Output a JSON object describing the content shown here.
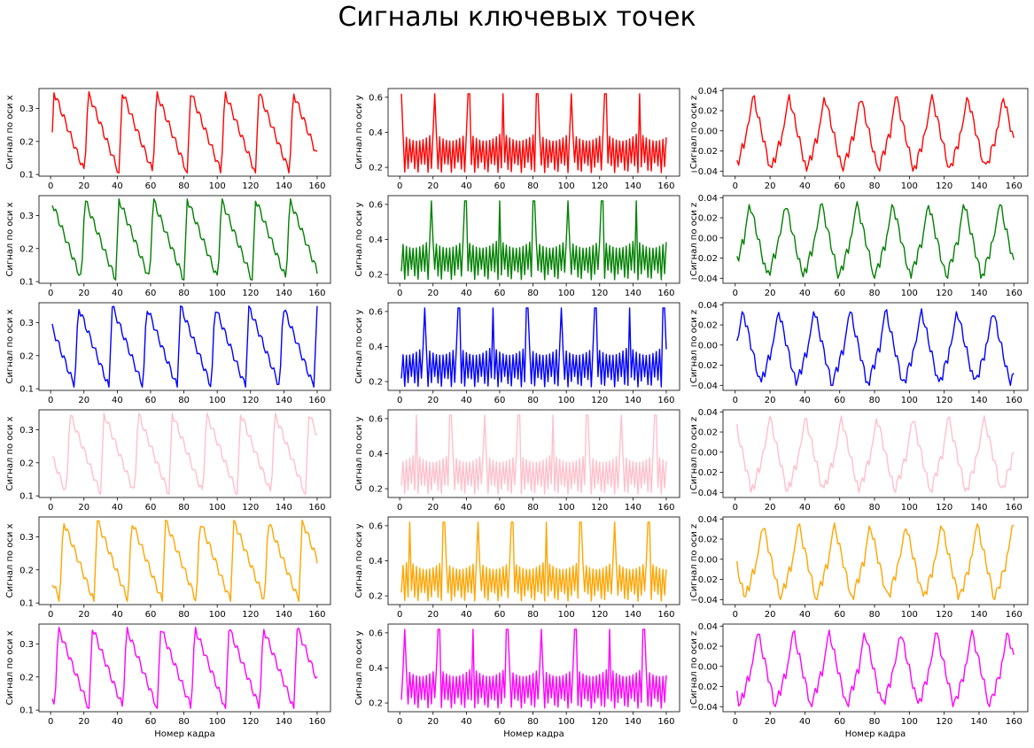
{
  "figure": {
    "title": "Сигналы ключевых точек",
    "xlabel": "Номер кадра",
    "ylabels": [
      "Сигнал по оси x",
      "Сигнал по оси y",
      "Сигнал по оси z"
    ],
    "row_colors": [
      "#ff0000",
      "#008000",
      "#0000ff",
      "#ffc0cb",
      "#ffa500",
      "#ff00ff"
    ]
  },
  "chart_data": {
    "type": "line",
    "grid": false,
    "x": {
      "start": 1,
      "end": 160,
      "step": 1
    },
    "x_ticks": [
      0,
      20,
      40,
      60,
      80,
      100,
      120,
      140,
      160
    ],
    "xlim": [
      -7,
      168
    ],
    "columns": [
      {
        "axis": "x",
        "ylabel": "Сигнал по оси x",
        "ylim": [
          0.095,
          0.36
        ],
        "y_ticks": [
          0.1,
          0.2,
          0.3
        ],
        "y_tick_labels": [
          "0.1",
          "0.2",
          "0.3"
        ],
        "signal": {
          "period": 20.5,
          "min": 0.105,
          "max": 0.35,
          "rise_frames": 2
        }
      },
      {
        "axis": "y",
        "ylabel": "Сигнал по оси y",
        "ylim": [
          0.15,
          0.65
        ],
        "y_ticks": [
          0.2,
          0.4,
          0.6
        ],
        "y_tick_labels": [
          "0.2",
          "0.4",
          "0.6"
        ],
        "signal": {
          "period": 20.5,
          "min": 0.17,
          "peak": 0.62,
          "zigzag_high": 0.4,
          "zigzag_low": 0.2
        }
      },
      {
        "axis": "z",
        "ylabel": "Сигнал по оси z",
        "ylim": [
          -0.045,
          0.042
        ],
        "y_ticks": [
          -0.04,
          -0.02,
          0.0,
          0.02,
          0.04
        ],
        "y_tick_labels": [
          "−0.04",
          "−0.02",
          "0.00",
          "0.02",
          "0.04"
        ],
        "signal": {
          "period": 20.5,
          "min": -0.04,
          "max": 0.036
        }
      }
    ],
    "series": [
      {
        "color": "#ff0000",
        "phase": 0
      },
      {
        "color": "#008000",
        "phase": 2
      },
      {
        "color": "#0000ff",
        "phase": 6
      },
      {
        "color": "#ffc0cb",
        "phase": 11
      },
      {
        "color": "#ffa500",
        "phase": 15
      },
      {
        "color": "#ff00ff",
        "phase": 18
      }
    ]
  }
}
